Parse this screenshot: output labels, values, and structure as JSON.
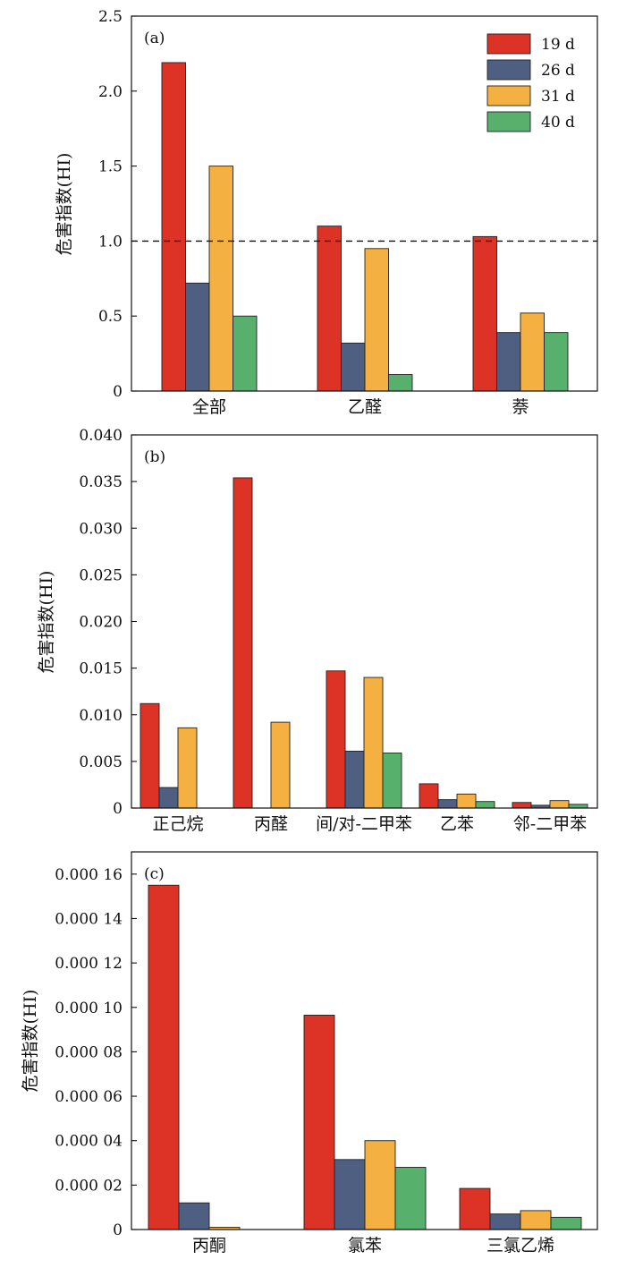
{
  "series_names": [
    "19 d",
    "26 d",
    "31 d",
    "40 d"
  ],
  "colors": [
    "#dd3226",
    "#4f5f82",
    "#f4b040",
    "#58b06d"
  ],
  "chart_data": [
    {
      "type": "bar",
      "panel_label": "(a)",
      "ylabel": "危害指数(HI)",
      "ylim": [
        0,
        2.5
      ],
      "yticks": [
        0,
        0.5,
        1.0,
        1.5,
        2.0,
        2.5
      ],
      "ytick_labels": [
        "0",
        "0.5",
        "1.0",
        "1.5",
        "2.0",
        "2.5"
      ],
      "categories": [
        "全部",
        "乙醛",
        "萘"
      ],
      "series": [
        {
          "name": "19 d",
          "values": [
            2.19,
            1.1,
            1.03
          ]
        },
        {
          "name": "26 d",
          "values": [
            0.72,
            0.32,
            0.39
          ]
        },
        {
          "name": "31 d",
          "values": [
            1.5,
            0.95,
            0.52
          ]
        },
        {
          "name": "40 d",
          "values": [
            0.5,
            0.11,
            0.39
          ]
        }
      ],
      "reference_line": 1.0,
      "legend": "top-right",
      "grid": false
    },
    {
      "type": "bar",
      "panel_label": "(b)",
      "ylabel": "危害指数(HI)",
      "ylim": [
        0,
        0.04
      ],
      "yticks": [
        0,
        0.005,
        0.01,
        0.015,
        0.02,
        0.025,
        0.03,
        0.035,
        0.04
      ],
      "ytick_labels": [
        "0",
        "0.005",
        "0.010",
        "0.015",
        "0.020",
        "0.025",
        "0.030",
        "0.035",
        "0.040"
      ],
      "categories": [
        "正己烷",
        "丙醛",
        "间/对-二甲苯",
        "乙苯",
        "邻-二甲苯"
      ],
      "series": [
        {
          "name": "19 d",
          "values": [
            0.0112,
            0.0354,
            0.0147,
            0.0026,
            0.0006
          ]
        },
        {
          "name": "26 d",
          "values": [
            0.0022,
            0.0,
            0.0061,
            0.0009,
            0.0003
          ]
        },
        {
          "name": "31 d",
          "values": [
            0.0086,
            0.0092,
            0.014,
            0.0015,
            0.0008
          ]
        },
        {
          "name": "40 d",
          "values": [
            0.0,
            0.0,
            0.0059,
            0.0007,
            0.0004
          ]
        }
      ],
      "grid": false
    },
    {
      "type": "bar",
      "panel_label": "(c)",
      "ylabel": "危害指数(HI)",
      "ylim": [
        0,
        0.00017
      ],
      "yticks": [
        0,
        2e-05,
        4e-05,
        6e-05,
        8e-05,
        0.0001,
        0.00012,
        0.00014,
        0.00016
      ],
      "ytick_labels": [
        "0",
        "0.000 02",
        "0.000 04",
        "0.000 06",
        "0.000 08",
        "0.000 10",
        "0.000 12",
        "0.000 14",
        "0.000 16"
      ],
      "categories": [
        "丙酮",
        "氯苯",
        "三氯乙烯"
      ],
      "series": [
        {
          "name": "19 d",
          "values": [
            0.000155,
            9.65e-05,
            1.85e-05
          ]
        },
        {
          "name": "26 d",
          "values": [
            1.2e-05,
            3.15e-05,
            7e-06
          ]
        },
        {
          "name": "31 d",
          "values": [
            1e-06,
            4e-05,
            8.5e-06
          ]
        },
        {
          "name": "40 d",
          "values": [
            0.0,
            2.8e-05,
            5.5e-06
          ]
        }
      ],
      "grid": false
    }
  ]
}
